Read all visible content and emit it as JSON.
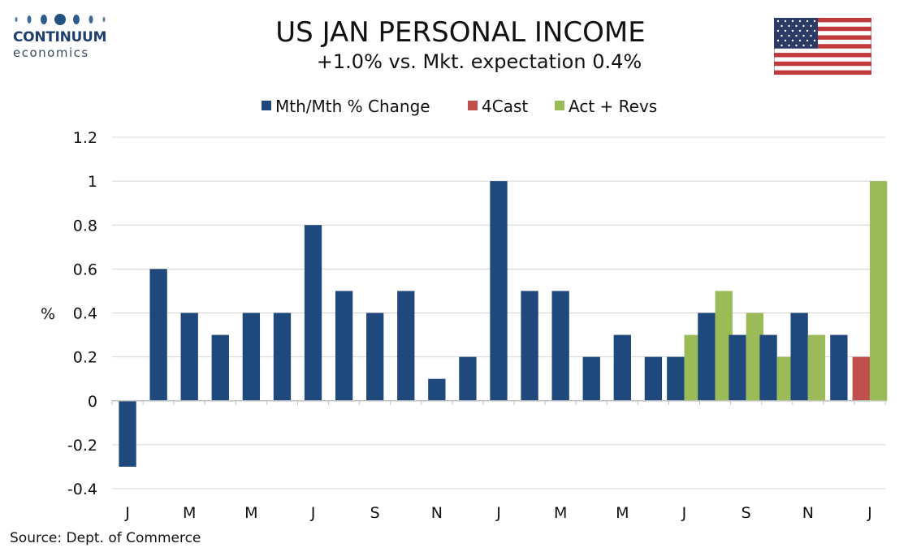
{
  "header": {
    "title": "US JAN PERSONAL INCOME",
    "subtitle": "+1.0% vs. Mkt. expectation 0.4%"
  },
  "logo": {
    "name": "CONTINUUM",
    "sub": "economics",
    "color": "#1f3f6e"
  },
  "source": "Source: Dept. of Commerce",
  "chart_data": {
    "type": "bar",
    "ylabel": "%",
    "ylim": [
      -0.4,
      1.2
    ],
    "yticks": [
      -0.4,
      -0.2,
      0,
      0.2,
      0.4,
      0.6,
      0.8,
      1,
      1.2
    ],
    "ytick_labels": [
      "-0.4",
      "-0.2",
      "0",
      "0.2",
      "0.4",
      "0.6",
      "0.8",
      "1",
      "1.2"
    ],
    "grid": true,
    "legend_position": "top-center",
    "category_count": 25,
    "xtick_labels": [
      "J",
      "M",
      "M",
      "J",
      "S",
      "N",
      "J",
      "M",
      "M",
      "J",
      "S",
      "N",
      "J"
    ],
    "series": [
      {
        "name": "Mth/Mth % Change",
        "color": "#1f497d",
        "values": [
          -0.3,
          0.6,
          0.4,
          0.3,
          0.4,
          0.4,
          0.8,
          0.5,
          0.4,
          0.5,
          0.1,
          0.2,
          1.0,
          0.5,
          0.5,
          0.2,
          0.3,
          0.2,
          0.2,
          0.4,
          0.3,
          0.3,
          0.4,
          0.3,
          null
        ]
      },
      {
        "name": "4Cast",
        "color": "#c0504d",
        "values": [
          null,
          null,
          null,
          null,
          null,
          null,
          null,
          null,
          null,
          null,
          null,
          null,
          null,
          null,
          null,
          null,
          null,
          null,
          null,
          null,
          null,
          null,
          null,
          null,
          0.2
        ]
      },
      {
        "name": "Act + Revs",
        "color": "#9bbb59",
        "values": [
          null,
          null,
          null,
          null,
          null,
          null,
          null,
          null,
          null,
          null,
          null,
          null,
          null,
          null,
          null,
          null,
          null,
          null,
          0.3,
          0.5,
          0.4,
          0.2,
          0.3,
          null,
          1.0
        ]
      }
    ]
  }
}
